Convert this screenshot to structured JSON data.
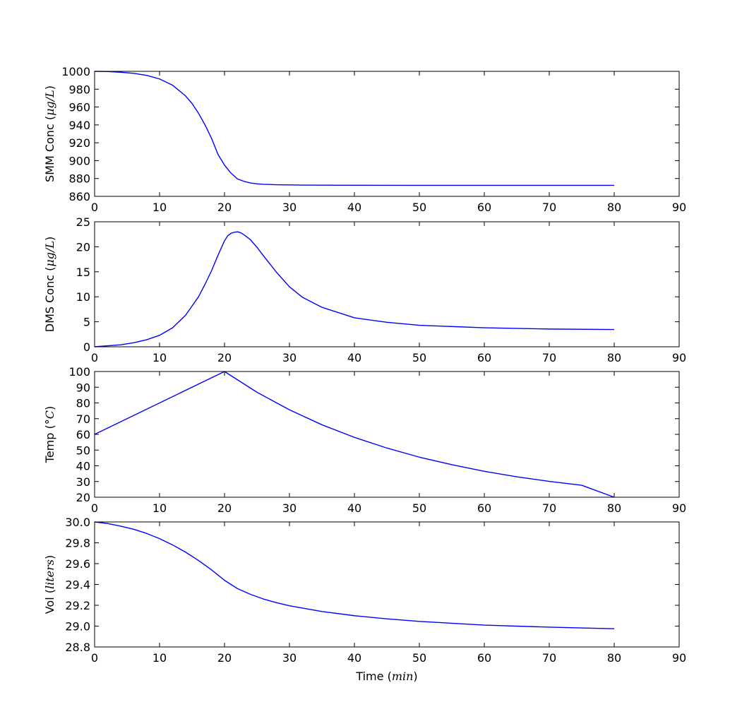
{
  "chart_data": [
    {
      "type": "line",
      "ylabel": "SMM Conc",
      "ylabel_unit": "μg/L",
      "xlim": [
        0,
        90
      ],
      "ylim": [
        860,
        1000
      ],
      "xticks": [
        0,
        10,
        20,
        30,
        40,
        50,
        60,
        70,
        80,
        90
      ],
      "yticks": [
        860,
        880,
        900,
        920,
        940,
        960,
        980,
        1000
      ],
      "grid": false,
      "series": [
        {
          "color": "#0000ff",
          "x": [
            0,
            2,
            4,
            6,
            8,
            10,
            12,
            14,
            15,
            16,
            17,
            18,
            19,
            20,
            21,
            22,
            23,
            24,
            25,
            26,
            28,
            30,
            32,
            35,
            40,
            50,
            60,
            70,
            80
          ],
          "y": [
            1000,
            999.8,
            999,
            997.8,
            995.5,
            991.5,
            984.5,
            972.5,
            964,
            953,
            940,
            925,
            907,
            895,
            886,
            879.5,
            876.8,
            875,
            874,
            873.5,
            873,
            872.8,
            872.6,
            872.5,
            872.4,
            872.3,
            872.3,
            872.3,
            872.3
          ]
        }
      ]
    },
    {
      "type": "line",
      "ylabel": "DMS Conc",
      "ylabel_unit": "μg/L",
      "xlim": [
        0,
        90
      ],
      "ylim": [
        0,
        25
      ],
      "xticks": [
        0,
        10,
        20,
        30,
        40,
        50,
        60,
        70,
        80,
        90
      ],
      "yticks": [
        0,
        5,
        10,
        15,
        20,
        25
      ],
      "grid": false,
      "series": [
        {
          "color": "#0000ff",
          "x": [
            0,
            2,
            4,
            6,
            8,
            10,
            12,
            14,
            16,
            17,
            18,
            19,
            20,
            20.5,
            21,
            21.5,
            22,
            22.5,
            23,
            24,
            25,
            26,
            28,
            30,
            32,
            35,
            40,
            45,
            50,
            60,
            70,
            80
          ],
          "y": [
            0,
            0.2,
            0.4,
            0.8,
            1.4,
            2.3,
            3.8,
            6.3,
            10,
            12.5,
            15.2,
            18.3,
            21.2,
            22.2,
            22.7,
            22.9,
            23,
            22.8,
            22.4,
            21.4,
            19.9,
            18.2,
            14.9,
            12,
            9.9,
            7.9,
            5.8,
            4.9,
            4.3,
            3.8,
            3.55,
            3.45
          ]
        }
      ]
    },
    {
      "type": "line",
      "ylabel": "Temp",
      "ylabel_unit": "°C",
      "xlim": [
        0,
        90
      ],
      "ylim": [
        20,
        100
      ],
      "xticks": [
        0,
        10,
        20,
        30,
        40,
        50,
        60,
        70,
        80,
        90
      ],
      "yticks": [
        20,
        30,
        40,
        50,
        60,
        70,
        80,
        90,
        100
      ],
      "grid": false,
      "series": [
        {
          "color": "#0000ff",
          "x": [
            0,
            20,
            25,
            30,
            35,
            40,
            45,
            50,
            55,
            60,
            65,
            70,
            75,
            80
          ],
          "y": [
            60,
            100,
            86.8,
            75.6,
            66.1,
            58.1,
            51.3,
            45.5,
            40.7,
            36.5,
            33,
            30.1,
            27.6,
            20
          ]
        }
      ]
    },
    {
      "type": "line",
      "ylabel": "Vol",
      "ylabel_unit": "liters",
      "xlabel": "Time",
      "xlabel_unit": "min",
      "xlim": [
        0,
        90
      ],
      "ylim": [
        28.8,
        30
      ],
      "xticks": [
        0,
        10,
        20,
        30,
        40,
        50,
        60,
        70,
        80,
        90
      ],
      "yticks": [
        "28.8",
        "29.0",
        "29.2",
        "29.4",
        "29.6",
        "29.8",
        "30.0"
      ],
      "grid": false,
      "series": [
        {
          "color": "#0000ff",
          "x": [
            0,
            2,
            4,
            6,
            8,
            10,
            12,
            14,
            16,
            18,
            20,
            22,
            24,
            26,
            28,
            30,
            35,
            40,
            45,
            50,
            60,
            70,
            80
          ],
          "y": [
            30,
            29.985,
            29.96,
            29.93,
            29.89,
            29.84,
            29.78,
            29.71,
            29.63,
            29.54,
            29.44,
            29.36,
            29.305,
            29.26,
            29.225,
            29.195,
            29.14,
            29.1,
            29.07,
            29.045,
            29.01,
            28.99,
            28.975
          ]
        }
      ]
    }
  ]
}
